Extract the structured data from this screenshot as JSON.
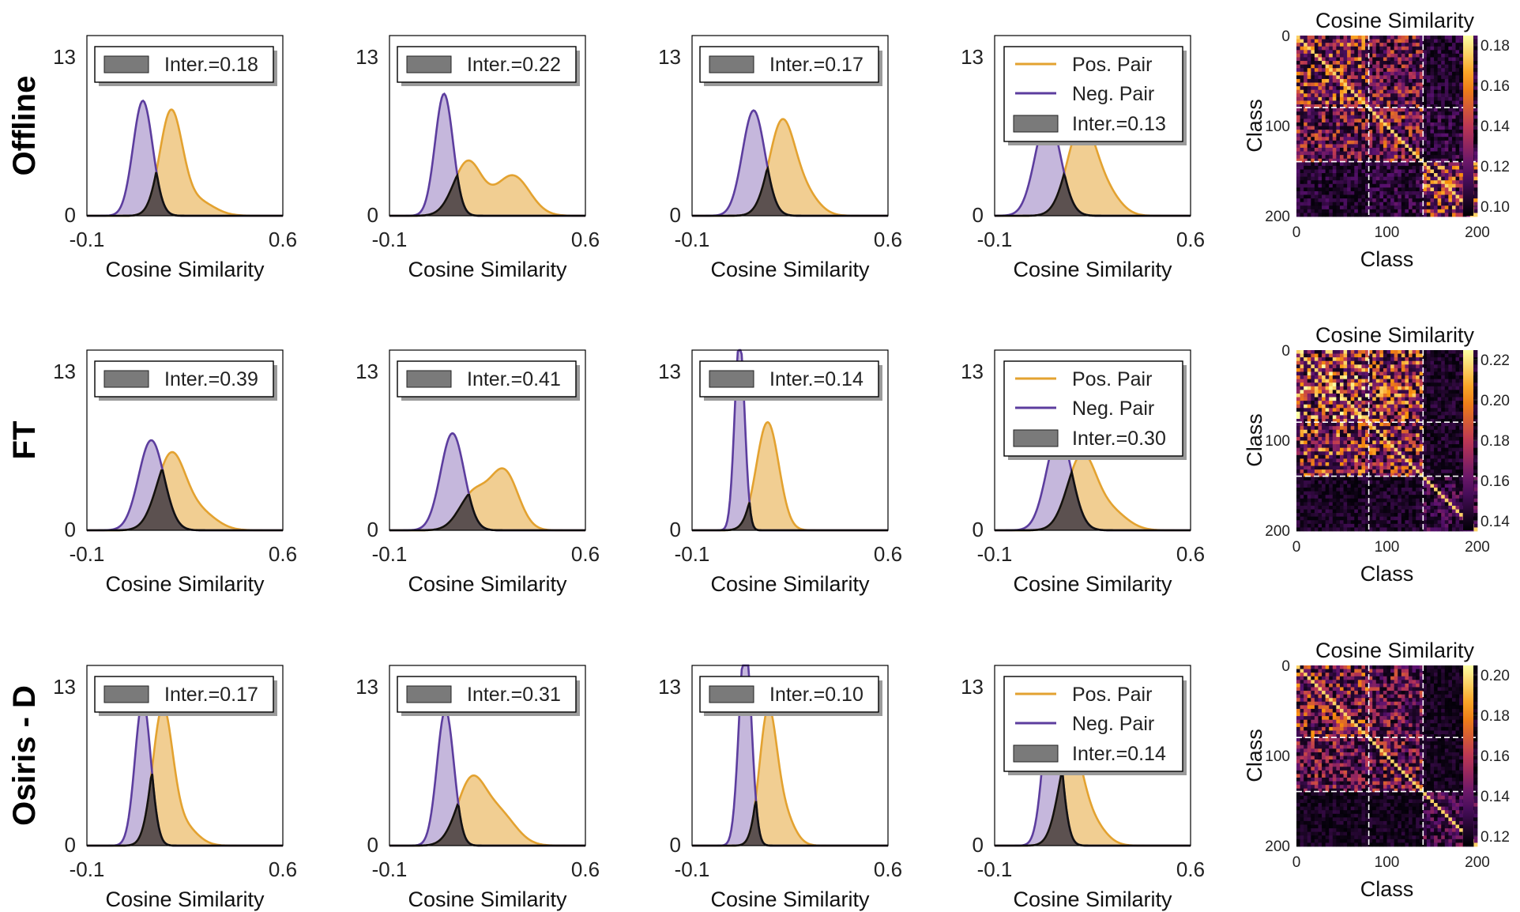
{
  "figure": {
    "xlabel": "Cosine Similarity",
    "xticks": [
      "-0.1",
      "0.6"
    ],
    "yticks": [
      "0",
      "13"
    ],
    "xlim": [
      -0.1,
      0.6
    ],
    "ylim": [
      0,
      13
    ],
    "colors": {
      "pos": "#e3a230",
      "pos_fill": "#efc67f",
      "neg": "#5c3d9e",
      "neg_fill": "#b7a5d3",
      "inter": "#5c5150",
      "inter_legend": "#7a7a7a"
    },
    "heatmap_title": "Cosine Similarity",
    "heatmap_xlabel": "Class",
    "heatmap_ylabel": "Class",
    "heatmap_ticks": [
      "0",
      "100",
      "200"
    ],
    "legend_pos": "Pos. Pair",
    "legend_neg": "Neg. Pair"
  },
  "chart_data": [
    {
      "row_label": "Offline",
      "panels": [
        {
          "type": "area",
          "inter_label": "Inter.=0.18",
          "show_pair_legend": false,
          "neg": {
            "peaks": [
              {
                "mu": 0.1,
                "sigma": 0.035,
                "a": 8.3
              }
            ]
          },
          "pos": {
            "peaks": [
              {
                "mu": 0.2,
                "sigma": 0.04,
                "a": 7.3
              },
              {
                "mu": 0.29,
                "sigma": 0.06,
                "a": 1.1
              }
            ]
          }
        },
        {
          "type": "area",
          "inter_label": "Inter.=0.22",
          "show_pair_legend": false,
          "neg": {
            "peaks": [
              {
                "mu": 0.095,
                "sigma": 0.032,
                "a": 8.8
              }
            ]
          },
          "pos": {
            "peaks": [
              {
                "mu": 0.18,
                "sigma": 0.05,
                "a": 3.9
              },
              {
                "mu": 0.34,
                "sigma": 0.06,
                "a": 2.9
              }
            ]
          }
        },
        {
          "type": "area",
          "inter_label": "Inter.=0.17",
          "show_pair_legend": false,
          "neg": {
            "peaks": [
              {
                "mu": 0.12,
                "sigma": 0.04,
                "a": 7.6
              }
            ]
          },
          "pos": {
            "peaks": [
              {
                "mu": 0.22,
                "sigma": 0.045,
                "a": 6.5
              },
              {
                "mu": 0.3,
                "sigma": 0.05,
                "a": 1.6
              }
            ]
          }
        },
        {
          "type": "area",
          "inter_label": "Inter.=0.13",
          "show_pair_legend": true,
          "neg": {
            "peaks": [
              {
                "mu": 0.09,
                "sigma": 0.045,
                "a": 7.2
              }
            ]
          },
          "pos": {
            "peaks": [
              {
                "mu": 0.21,
                "sigma": 0.05,
                "a": 6.5
              },
              {
                "mu": 0.3,
                "sigma": 0.05,
                "a": 1.5
              }
            ]
          }
        },
        {
          "type": "heatmap",
          "colorbar_ticks": [
            "0.18",
            "0.16",
            "0.14",
            "0.12",
            "0.10"
          ],
          "block_bounds": [
            80,
            140
          ],
          "block_intensity": [
            [
              0.7,
              0.55,
              0.2
            ],
            [
              0.55,
              0.6,
              0.25
            ],
            [
              0.2,
              0.25,
              0.75
            ]
          ]
        }
      ]
    },
    {
      "row_label": "FT",
      "panels": [
        {
          "type": "area",
          "inter_label": "Inter.=0.39",
          "show_pair_legend": false,
          "neg": {
            "peaks": [
              {
                "mu": 0.13,
                "sigma": 0.045,
                "a": 6.5
              }
            ]
          },
          "pos": {
            "peaks": [
              {
                "mu": 0.2,
                "sigma": 0.05,
                "a": 5.3
              },
              {
                "mu": 0.3,
                "sigma": 0.06,
                "a": 1.3
              }
            ]
          }
        },
        {
          "type": "area",
          "inter_label": "Inter.=0.41",
          "show_pair_legend": false,
          "neg": {
            "peaks": [
              {
                "mu": 0.125,
                "sigma": 0.042,
                "a": 7.0
              }
            ]
          },
          "pos": {
            "peaks": [
              {
                "mu": 0.2,
                "sigma": 0.05,
                "a": 2.6
              },
              {
                "mu": 0.31,
                "sigma": 0.05,
                "a": 4.2
              }
            ]
          }
        },
        {
          "type": "area",
          "inter_label": "Inter.=0.14",
          "show_pair_legend": false,
          "neg": {
            "peaks": [
              {
                "mu": 0.07,
                "sigma": 0.018,
                "a": 13.8
              }
            ]
          },
          "pos": {
            "peaks": [
              {
                "mu": 0.17,
                "sigma": 0.04,
                "a": 7.8
              }
            ]
          }
        },
        {
          "type": "area",
          "inter_label": "Inter.=0.30",
          "show_pair_legend": true,
          "neg": {
            "peaks": [
              {
                "mu": 0.13,
                "sigma": 0.045,
                "a": 7.0
              }
            ]
          },
          "pos": {
            "peaks": [
              {
                "mu": 0.21,
                "sigma": 0.05,
                "a": 5.2
              },
              {
                "mu": 0.31,
                "sigma": 0.06,
                "a": 1.4
              }
            ]
          }
        },
        {
          "type": "heatmap",
          "colorbar_ticks": [
            "0.22",
            "0.20",
            "0.18",
            "0.16",
            "0.14"
          ],
          "block_bounds": [
            80,
            140
          ],
          "block_intensity": [
            [
              0.85,
              0.75,
              0.15
            ],
            [
              0.75,
              0.7,
              0.15
            ],
            [
              0.15,
              0.15,
              0.3
            ]
          ]
        }
      ]
    },
    {
      "row_label": "Osiris - D",
      "panels": [
        {
          "type": "area",
          "inter_label": "Inter.=0.17",
          "show_pair_legend": false,
          "neg": {
            "peaks": [
              {
                "mu": 0.1,
                "sigma": 0.028,
                "a": 10.5
              }
            ]
          },
          "pos": {
            "peaks": [
              {
                "mu": 0.17,
                "sigma": 0.035,
                "a": 9.5
              },
              {
                "mu": 0.24,
                "sigma": 0.05,
                "a": 1.5
              }
            ]
          }
        },
        {
          "type": "area",
          "inter_label": "Inter.=0.31",
          "show_pair_legend": false,
          "neg": {
            "peaks": [
              {
                "mu": 0.1,
                "sigma": 0.03,
                "a": 9.8
              }
            ]
          },
          "pos": {
            "peaks": [
              {
                "mu": 0.19,
                "sigma": 0.05,
                "a": 4.4
              },
              {
                "mu": 0.29,
                "sigma": 0.06,
                "a": 2.3
              }
            ]
          }
        },
        {
          "type": "area",
          "inter_label": "Inter.=0.10",
          "show_pair_legend": false,
          "neg": {
            "peaks": [
              {
                "mu": 0.09,
                "sigma": 0.022,
                "a": 15.0
              }
            ]
          },
          "pos": {
            "peaks": [
              {
                "mu": 0.17,
                "sigma": 0.03,
                "a": 8.8
              },
              {
                "mu": 0.22,
                "sigma": 0.04,
                "a": 2.5
              }
            ]
          }
        },
        {
          "type": "area",
          "inter_label": "Inter.=0.14",
          "show_pair_legend": true,
          "neg": {
            "peaks": [
              {
                "mu": 0.105,
                "sigma": 0.03,
                "a": 11.5
              }
            ]
          },
          "pos": {
            "peaks": [
              {
                "mu": 0.17,
                "sigma": 0.04,
                "a": 6.8
              },
              {
                "mu": 0.24,
                "sigma": 0.05,
                "a": 1.8
              }
            ]
          }
        },
        {
          "type": "heatmap",
          "colorbar_ticks": [
            "0.20",
            "0.18",
            "0.16",
            "0.14",
            "0.12"
          ],
          "block_bounds": [
            80,
            140
          ],
          "block_intensity": [
            [
              0.65,
              0.5,
              0.12
            ],
            [
              0.5,
              0.55,
              0.12
            ],
            [
              0.12,
              0.12,
              0.35
            ]
          ]
        }
      ]
    }
  ]
}
